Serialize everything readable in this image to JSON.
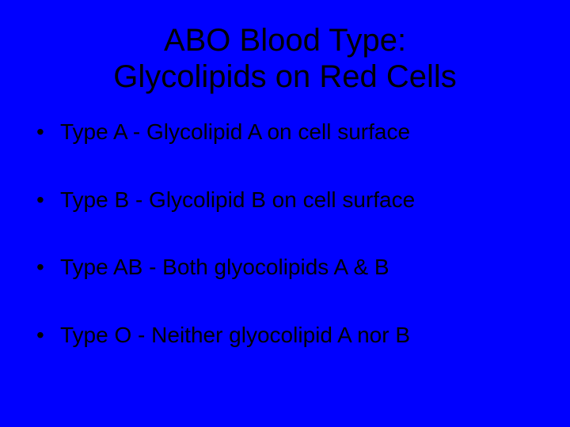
{
  "slide": {
    "background_color": "#0000ff",
    "text_color": "#000000",
    "title_line1": "ABO Blood Type:",
    "title_line2": "Glycolipids on Red Cells",
    "title_fontsize": 40,
    "bullet_fontsize": 28,
    "bullets": [
      "Type A - Glycolipid A on cell surface",
      "Type B - Glycolipid B on cell surface",
      "Type AB - Both glyocolipids A & B",
      "Type O - Neither glyocolipid A nor B"
    ]
  }
}
